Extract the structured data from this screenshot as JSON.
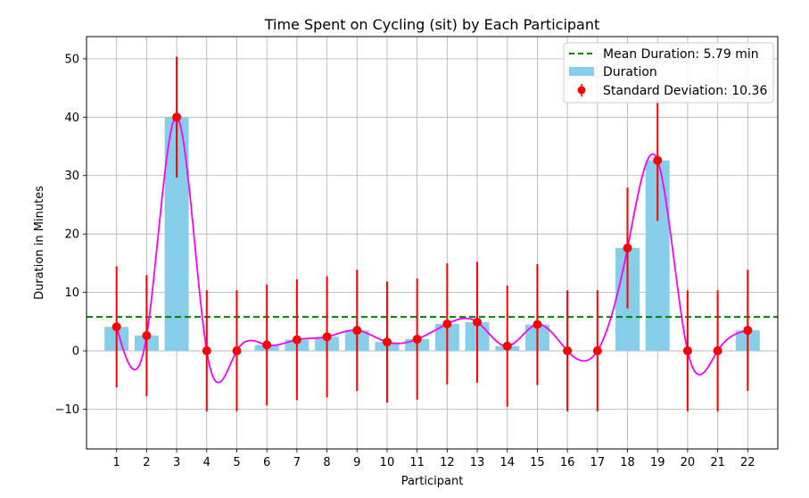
{
  "chart_data": {
    "type": "bar",
    "title": "Time Spent on Cycling (sit) by Each Participant",
    "xlabel": "Participant",
    "ylabel": "Duration in Minutes",
    "categories": [
      "1",
      "2",
      "3",
      "4",
      "5",
      "6",
      "7",
      "8",
      "9",
      "10",
      "11",
      "12",
      "13",
      "14",
      "15",
      "16",
      "17",
      "18",
      "19",
      "20",
      "21",
      "22"
    ],
    "values": [
      4.1,
      2.6,
      40.0,
      0.0,
      0.0,
      1.0,
      1.9,
      2.4,
      3.5,
      1.5,
      2.0,
      4.6,
      4.9,
      0.8,
      4.5,
      0.0,
      0.0,
      17.6,
      32.6,
      0.0,
      0.0,
      3.5
    ],
    "error": 10.36,
    "mean": 5.79,
    "ylim": [
      -16.8,
      53.8
    ],
    "yticks": [
      -10,
      0,
      10,
      20,
      30,
      40,
      50
    ],
    "grid": true,
    "legend_position": "top-right",
    "legend": {
      "mean_label": "Mean Duration: 5.79 min",
      "bar_label": "Duration",
      "std_label": "Standard Deviation: 10.36"
    },
    "colors": {
      "bar": "#87ceeb",
      "points": "#ff0000",
      "errorbar": "#ff0000",
      "mean_line": "#008000",
      "curve": "#ff00ff",
      "grid": "#b0b0b0"
    }
  }
}
